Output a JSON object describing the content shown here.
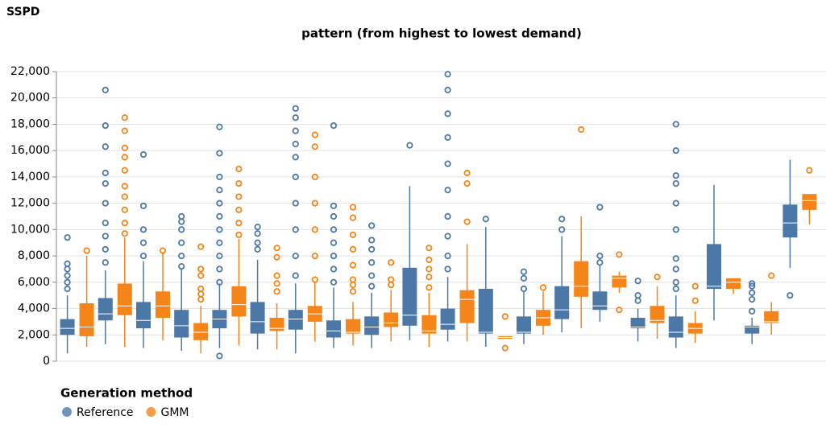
{
  "chart_data": {
    "type": "boxplot",
    "y_label": "SSPD",
    "x_label": "pattern (from highest to lowest demand)",
    "legend_title": "Generation method",
    "categories": [
      null,
      null,
      null,
      null,
      null,
      null,
      null,
      null,
      null,
      null,
      null,
      null,
      null,
      null,
      null,
      null,
      null,
      null,
      null,
      null
    ],
    "ylim": [
      0,
      22000
    ],
    "yticks": [
      0,
      {
        "value": 2000,
        "label": "2,000"
      },
      {
        "value": 4000,
        "label": "4,000"
      },
      {
        "value": 6000,
        "label": "6,000"
      },
      {
        "value": 8000,
        "label": "8,000"
      },
      {
        "value": 10000,
        "label": "10,000"
      },
      {
        "value": 12000,
        "label": "12,000"
      },
      {
        "value": 14000,
        "label": "14,000"
      },
      {
        "value": 16000,
        "label": "16,000"
      },
      {
        "value": 18000,
        "label": "18,000"
      },
      {
        "value": 20000,
        "label": "20,000"
      },
      {
        "value": 22000,
        "label": "22,000"
      }
    ],
    "grid": true,
    "series": [
      {
        "name": "Reference",
        "color": "#4c78a8",
        "boxes": [
          {
            "low": 600,
            "q1": 2000,
            "median": 2500,
            "q3": 3200,
            "high": 5000,
            "outliers": [
              5500,
              6000,
              6500,
              7000,
              7400,
              9400
            ]
          },
          {
            "low": 1300,
            "q1": 3100,
            "median": 3600,
            "q3": 4800,
            "high": 6900,
            "outliers": [
              7500,
              8500,
              9500,
              10500,
              12000,
              13500,
              14300,
              16300,
              17900,
              20600
            ]
          },
          {
            "low": 1000,
            "q1": 2500,
            "median": 3100,
            "q3": 4500,
            "high": 7600,
            "outliers": [
              8000,
              9000,
              10000,
              11800,
              15700
            ]
          },
          {
            "low": 800,
            "q1": 1800,
            "median": 2700,
            "q3": 3900,
            "high": 7000,
            "outliers": [
              7200,
              8000,
              9000,
              10000,
              10600,
              11000
            ]
          },
          {
            "low": 1000,
            "q1": 2500,
            "median": 3200,
            "q3": 3900,
            "high": 5900,
            "outliers": [
              400,
              6000,
              7000,
              8000,
              9000,
              10000,
              11000,
              12000,
              13000,
              14000,
              15800,
              17800
            ]
          },
          {
            "low": 900,
            "q1": 2100,
            "median": 3000,
            "q3": 4500,
            "high": 7700,
            "outliers": [
              8500,
              9000,
              9700,
              10200
            ]
          },
          {
            "low": 600,
            "q1": 2400,
            "median": 3200,
            "q3": 3900,
            "high": 5900,
            "outliers": [
              6500,
              8000,
              10000,
              12000,
              14000,
              15500,
              16500,
              17500,
              18500,
              19200
            ]
          },
          {
            "low": 1000,
            "q1": 1800,
            "median": 2300,
            "q3": 3100,
            "high": 5600,
            "outliers": [
              6000,
              7000,
              8000,
              9000,
              10000,
              11000,
              11800,
              17900
            ]
          },
          {
            "low": 1000,
            "q1": 2000,
            "median": 2600,
            "q3": 3400,
            "high": 5200,
            "outliers": [
              5700,
              6500,
              7500,
              8500,
              9200,
              10300
            ]
          },
          {
            "low": 1600,
            "q1": 2700,
            "median": 3500,
            "q3": 7100,
            "high": 13300,
            "outliers": [
              16400
            ]
          },
          {
            "low": 1500,
            "q1": 2400,
            "median": 2800,
            "q3": 4000,
            "high": 6400,
            "outliers": [
              7000,
              8000,
              9500,
              11000,
              13000,
              15000,
              17000,
              18800,
              20600,
              21800
            ]
          },
          {
            "low": 1100,
            "q1": 2100,
            "median": 2200,
            "q3": 5500,
            "high": 10200,
            "outliers": [
              10800
            ]
          },
          {
            "low": 1300,
            "q1": 2100,
            "median": 2200,
            "q3": 3400,
            "high": 5300,
            "outliers": [
              5500,
              6300,
              6800
            ]
          },
          {
            "low": 2200,
            "q1": 3200,
            "median": 3900,
            "q3": 5700,
            "high": 9500,
            "outliers": [
              10000,
              10800
            ]
          },
          {
            "low": 3000,
            "q1": 3900,
            "median": 4200,
            "q3": 5300,
            "high": 7300,
            "outliers": [
              7500,
              8000,
              11700
            ]
          },
          {
            "low": 1500,
            "q1": 2500,
            "median": 2600,
            "q3": 3300,
            "high": 4000,
            "outliers": [
              4600,
              5000,
              6100
            ]
          },
          {
            "low": 1000,
            "q1": 1800,
            "median": 2200,
            "q3": 3400,
            "high": 5000,
            "outliers": [
              5500,
              6000,
              7000,
              7800,
              10000,
              12000,
              13500,
              14100,
              16000,
              18000
            ]
          },
          {
            "low": 3100,
            "q1": 5500,
            "median": 5700,
            "q3": 8900,
            "high": 13400,
            "outliers": []
          },
          {
            "low": 1300,
            "q1": 2100,
            "median": 2600,
            "q3": 2700,
            "high": 3300,
            "outliers": [
              3800,
              4700,
              5200,
              5700,
              5900
            ]
          },
          {
            "low": 7100,
            "q1": 9400,
            "median": 10500,
            "q3": 11900,
            "high": 15300,
            "outliers": [
              5000
            ]
          }
        ]
      },
      {
        "name": "GMM",
        "color": "#f58518",
        "boxes": [
          {
            "low": 1100,
            "q1": 1900,
            "median": 2600,
            "q3": 4400,
            "high": 8000,
            "outliers": [
              8400
            ]
          },
          {
            "low": 1100,
            "q1": 3500,
            "median": 4200,
            "q3": 5900,
            "high": 9400,
            "outliers": [
              9700,
              10500,
              11500,
              12500,
              13300,
              14500,
              15500,
              16200,
              17500,
              18500
            ]
          },
          {
            "low": 1600,
            "q1": 3300,
            "median": 4200,
            "q3": 5300,
            "high": 8300,
            "outliers": [
              8400
            ]
          },
          {
            "low": 600,
            "q1": 1600,
            "median": 2200,
            "q3": 2900,
            "high": 4200,
            "outliers": [
              4700,
              5100,
              5500,
              6500,
              7000,
              8700
            ]
          },
          {
            "low": 1200,
            "q1": 3400,
            "median": 4300,
            "q3": 5700,
            "high": 9300,
            "outliers": [
              9600,
              10500,
              11500,
              12500,
              13500,
              14600
            ]
          },
          {
            "low": 900,
            "q1": 2300,
            "median": 2500,
            "q3": 3300,
            "high": 4400,
            "outliers": [
              5300,
              5900,
              6500,
              7900,
              8600
            ]
          },
          {
            "low": 1500,
            "q1": 3000,
            "median": 3600,
            "q3": 4200,
            "high": 6000,
            "outliers": [
              6200,
              8000,
              10000,
              12000,
              14000,
              16300,
              17200
            ]
          },
          {
            "low": 1200,
            "q1": 2100,
            "median": 2200,
            "q3": 3200,
            "high": 4500,
            "outliers": [
              5300,
              5800,
              6200,
              7300,
              8500,
              9600,
              10900,
              11700
            ]
          },
          {
            "low": 1500,
            "q1": 2600,
            "median": 2900,
            "q3": 3700,
            "high": 5400,
            "outliers": [
              5800,
              6200,
              7500
            ]
          },
          {
            "low": 1100,
            "q1": 2100,
            "median": 2300,
            "q3": 3500,
            "high": 5200,
            "outliers": [
              5600,
              6400,
              7000,
              7700,
              8600
            ]
          },
          {
            "low": 1500,
            "q1": 2900,
            "median": 4700,
            "q3": 5400,
            "high": 8900,
            "outliers": [
              10600,
              13500,
              14300
            ]
          },
          {
            "low": 1700,
            "q1": 1700,
            "median": 1800,
            "q3": 1900,
            "high": 1900,
            "outliers": [
              1000,
              3400
            ]
          },
          {
            "low": 2000,
            "q1": 2700,
            "median": 3300,
            "q3": 3900,
            "high": 5300,
            "outliers": [
              5600
            ]
          },
          {
            "low": 2500,
            "q1": 4900,
            "median": 5700,
            "q3": 7600,
            "high": 11000,
            "outliers": [
              17600
            ]
          },
          {
            "low": 5200,
            "q1": 5600,
            "median": 6300,
            "q3": 6500,
            "high": 6800,
            "outliers": [
              3900,
              8100
            ]
          },
          {
            "low": 1700,
            "q1": 2900,
            "median": 3100,
            "q3": 4200,
            "high": 5700,
            "outliers": [
              6400
            ]
          },
          {
            "low": 1400,
            "q1": 2100,
            "median": 2500,
            "q3": 2900,
            "high": 3800,
            "outliers": [
              4600,
              5700
            ]
          },
          {
            "low": 5100,
            "q1": 5500,
            "median": 6000,
            "q3": 6300,
            "high": 6300,
            "outliers": []
          },
          {
            "low": 2000,
            "q1": 2900,
            "median": 3000,
            "q3": 3800,
            "high": 4500,
            "outliers": [
              6500
            ]
          },
          {
            "low": 10400,
            "q1": 11500,
            "median": 12200,
            "q3": 12700,
            "high": 12700,
            "outliers": [
              14500
            ]
          }
        ]
      }
    ]
  }
}
